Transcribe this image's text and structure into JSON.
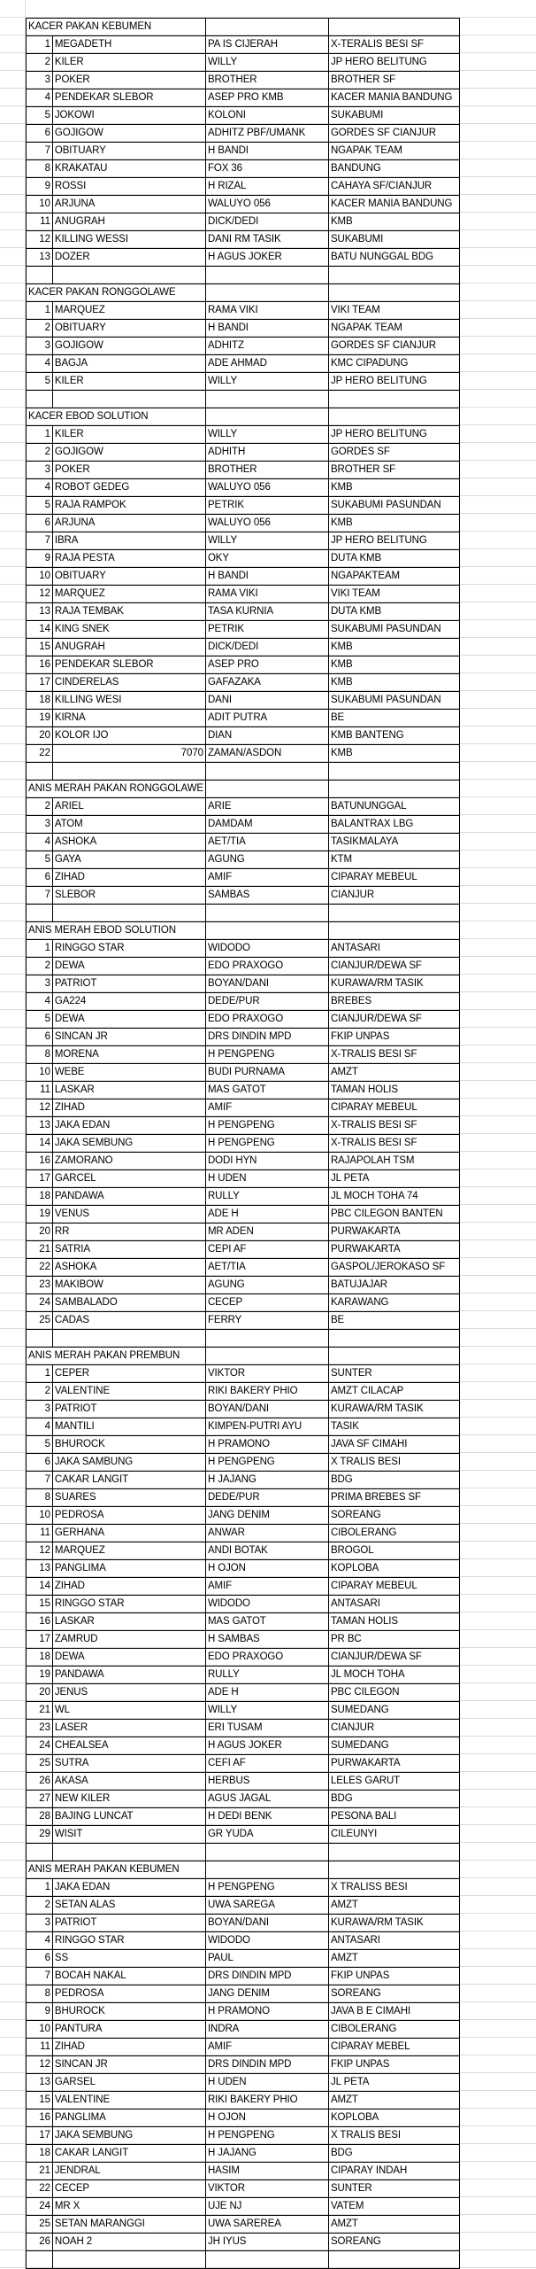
{
  "sections": [
    {
      "title": "KACER PAKAN KEBUMEN",
      "rows": [
        [
          "1",
          "MEGADETH",
          "PA IS CIJERAH",
          "X-TERALIS BESI SF"
        ],
        [
          "2",
          "KILER",
          "WILLY",
          "JP HERO BELITUNG"
        ],
        [
          "3",
          "POKER",
          "BROTHER",
          "BROTHER SF"
        ],
        [
          "4",
          "PENDEKAR SLEBOR",
          "ASEP PRO KMB",
          "KACER MANIA BANDUNG"
        ],
        [
          "5",
          "JOKOWI",
          "KOLONI",
          "SUKABUMI"
        ],
        [
          "6",
          "GOJIGOW",
          "ADHITZ PBF/UMANK",
          "GORDES SF CIANJUR"
        ],
        [
          "7",
          "OBITUARY",
          "H BANDI",
          "NGAPAK TEAM"
        ],
        [
          "8",
          "KRAKATAU",
          "FOX 36",
          "BANDUNG"
        ],
        [
          "9",
          "ROSSI",
          "H RIZAL",
          "CAHAYA SF/CIANJUR"
        ],
        [
          "10",
          "ARJUNA",
          "WALUYO 056",
          "KACER MANIA BANDUNG"
        ],
        [
          "11",
          "ANUGRAH",
          "DICK/DEDI",
          "KMB"
        ],
        [
          "12",
          "KILLING WESSI",
          "DANI RM TASIK",
          "SUKABUMI"
        ],
        [
          "13",
          "DOZER",
          "H AGUS JOKER",
          "BATU NUNGGAL BDG"
        ]
      ]
    },
    {
      "title": "KACER PAKAN RONGGOLAWE",
      "rows": [
        [
          "1",
          "MARQUEZ",
          "RAMA VIKI",
          "VIKI TEAM"
        ],
        [
          "2",
          "OBITUARY",
          "H BANDI",
          "NGAPAK TEAM"
        ],
        [
          "3",
          "GOJIGOW",
          "ADHITZ",
          "GORDES SF CIANJUR"
        ],
        [
          "4",
          "BAGJA",
          "ADE AHMAD",
          "KMC CIPADUNG"
        ],
        [
          "5",
          "KILER",
          "WILLY",
          "JP HERO BELITUNG"
        ]
      ]
    },
    {
      "title": "KACER EBOD SOLUTION",
      "rows": [
        [
          "1",
          "KILER",
          "WILLY",
          "JP HERO BELITUNG"
        ],
        [
          "2",
          "GOJIGOW",
          "ADHITH",
          "GORDES SF"
        ],
        [
          "3",
          "POKER",
          "BROTHER",
          "BROTHER SF"
        ],
        [
          "4",
          "ROBOT GEDEG",
          "WALUYO 056",
          "KMB"
        ],
        [
          "5",
          "RAJA RAMPOK",
          "PETRIK",
          "SUKABUMI PASUNDAN"
        ],
        [
          "6",
          "ARJUNA",
          "WALUYO 056",
          "KMB"
        ],
        [
          "7",
          "IBRA",
          "WILLY",
          "JP HERO BELITUNG"
        ],
        [
          "9",
          "RAJA PESTA",
          "OKY",
          "DUTA KMB"
        ],
        [
          "10",
          "OBITUARY",
          "H BANDI",
          "NGAPAKTEAM"
        ],
        [
          "12",
          "MARQUEZ",
          "RAMA VIKI",
          "VIKI TEAM"
        ],
        [
          "13",
          "RAJA TEMBAK",
          "TASA KURNIA",
          "DUTA KMB"
        ],
        [
          "14",
          "KING SNEK",
          "PETRIK",
          "SUKABUMI PASUNDAN"
        ],
        [
          "15",
          "ANUGRAH",
          "DICK/DEDI",
          "KMB"
        ],
        [
          "16",
          "PENDEKAR SLEBOR",
          "ASEP PRO",
          "KMB"
        ],
        [
          "17",
          "CINDERELAS",
          "GAFAZAKA",
          "KMB"
        ],
        [
          "18",
          "KILLING WESI",
          "DANI",
          "SUKABUMI PASUNDAN"
        ],
        [
          "19",
          "KIRNA",
          "ADIT PUTRA",
          "BE"
        ],
        [
          "20",
          "KOLOR IJO",
          "DIAN",
          "KMB BANTENG"
        ],
        [
          "22",
          "7070",
          "ZAMAN/ASDON",
          "KMB"
        ]
      ]
    },
    {
      "title": "ANIS MERAH PAKAN RONGGOLAWE",
      "rows": [
        [
          "2",
          "ARIEL",
          "ARIE",
          "BATUNUNGGAL"
        ],
        [
          "3",
          "ATOM",
          "DAMDAM",
          "BALANTRAX LBG"
        ],
        [
          "4",
          "ASHOKA",
          "AET/TIA",
          "TASIKMALAYA"
        ],
        [
          "5",
          "GAYA",
          "AGUNG",
          "KTM"
        ],
        [
          "6",
          "ZIHAD",
          "AMIF",
          "CIPARAY MEBEUL"
        ],
        [
          "7",
          "SLEBOR",
          "SAMBAS",
          "CIANJUR"
        ]
      ]
    },
    {
      "title": "ANIS MERAH EBOD SOLUTION",
      "rows": [
        [
          "1",
          "RINGGO STAR",
          "WIDODO",
          "ANTASARI"
        ],
        [
          "2",
          "DEWA",
          "EDO PRAXOGO",
          "CIANJUR/DEWA SF"
        ],
        [
          "3",
          "PATRIOT",
          "BOYAN/DANI",
          "KURAWA/RM TASIK"
        ],
        [
          "4",
          "GA224",
          "DEDE/PUR",
          "BREBES"
        ],
        [
          "5",
          "DEWA",
          "EDO PRAXOGO",
          "CIANJUR/DEWA SF"
        ],
        [
          "6",
          "SINCAN JR",
          "DRS DINDIN MPD",
          "FKIP UNPAS"
        ],
        [
          "8",
          "MORENA",
          "H PENGPENG",
          "X-TRALIS BESI SF"
        ],
        [
          "10",
          "WEBE",
          "BUDI PURNAMA",
          "AMZT"
        ],
        [
          "11",
          "LASKAR",
          "MAS GATOT",
          "TAMAN HOLIS"
        ],
        [
          "12",
          "ZIHAD",
          "AMIF",
          "CIPARAY MEBEUL"
        ],
        [
          "13",
          "JAKA EDAN",
          "H PENGPENG",
          "X-TRALIS BESI SF"
        ],
        [
          "14",
          "JAKA SEMBUNG",
          "H PENGPENG",
          "X-TRALIS BESI SF"
        ],
        [
          "16",
          "ZAMORANO",
          "DODI HYN",
          "RAJAPOLAH TSM"
        ],
        [
          "17",
          "GARCEL",
          "H UDEN",
          "JL PETA"
        ],
        [
          "18",
          "PANDAWA",
          "RULLY",
          "JL MOCH TOHA 74"
        ],
        [
          "19",
          "VENUS",
          "ADE H",
          "PBC CILEGON BANTEN"
        ],
        [
          "20",
          "RR",
          "MR ADEN",
          "PURWAKARTA"
        ],
        [
          "21",
          "SATRIA",
          "CEPI AF",
          "PURWAKARTA"
        ],
        [
          "22",
          "ASHOKA",
          "AET/TIA",
          "GASPOL/JEROKASO SF"
        ],
        [
          "23",
          "MAKIBOW",
          "AGUNG",
          "BATUJAJAR"
        ],
        [
          "24",
          "SAMBALADO",
          "CECEP",
          "KARAWANG"
        ],
        [
          "25",
          "CADAS",
          "FERRY",
          "BE"
        ]
      ]
    },
    {
      "title": "ANIS MERAH PAKAN PREMBUN",
      "rows": [
        [
          "1",
          "CEPER",
          "VIKTOR",
          "SUNTER"
        ],
        [
          "2",
          "VALENTINE",
          "RIKI BAKERY PHIO",
          "AMZT CILACAP"
        ],
        [
          "3",
          "PATRIOT",
          "BOYAN/DANI",
          "KURAWA/RM TASIK"
        ],
        [
          "4",
          "MANTILI",
          "KIMPEN-PUTRI AYU",
          "TASIK"
        ],
        [
          "5",
          "BHUROCK",
          "H PRAMONO",
          "JAVA SF CIMAHI"
        ],
        [
          "6",
          "JAKA SAMBUNG",
          "H PENGPENG",
          "X TRALIS BESI"
        ],
        [
          "7",
          "CAKAR LANGIT",
          "H JAJANG",
          "BDG"
        ],
        [
          "8",
          "SUARES",
          "DEDE/PUR",
          "PRIMA BREBES SF"
        ],
        [
          "10",
          "PEDROSA",
          "JANG DENIM",
          "SOREANG"
        ],
        [
          "11",
          "GERHANA",
          "ANWAR",
          "CIBOLERANG"
        ],
        [
          "12",
          "MARQUEZ",
          "ANDI BOTAK",
          "BROGOL"
        ],
        [
          "13",
          "PANGLIMA",
          "H OJON",
          "KOPLOBA"
        ],
        [
          "14",
          "ZIHAD",
          "AMIF",
          "CIPARAY MEBEUL"
        ],
        [
          "15",
          "RINGGO STAR",
          "WIDODO",
          "ANTASARI"
        ],
        [
          "16",
          "LASKAR",
          "MAS GATOT",
          "TAMAN HOLIS"
        ],
        [
          "17",
          "ZAMRUD",
          "H SAMBAS",
          "PR BC"
        ],
        [
          "18",
          "DEWA",
          "EDO PRAXOGO",
          "CIANJUR/DEWA SF"
        ],
        [
          "19",
          "PANDAWA",
          "RULLY",
          "JL MOCH TOHA"
        ],
        [
          "20",
          "JENUS",
          "ADE H",
          "PBC CILEGON"
        ],
        [
          "21",
          "WL",
          "WILLY",
          "SUMEDANG"
        ],
        [
          "23",
          "LASER",
          "ERI TUSAM",
          "CIANJUR"
        ],
        [
          "24",
          "CHEALSEA",
          "H AGUS JOKER",
          "SUMEDANG"
        ],
        [
          "25",
          "SUTRA",
          "CEFI AF",
          "PURWAKARTA"
        ],
        [
          "26",
          "AKASA",
          "HERBUS",
          "LELES GARUT"
        ],
        [
          "27",
          "NEW KILER",
          "AGUS JAGAL",
          "BDG"
        ],
        [
          "28",
          "BAJING LUNCAT",
          "H DEDI BENK",
          "PESONA BALI"
        ],
        [
          "29",
          "WISIT",
          "GR YUDA",
          "CILEUNYI"
        ]
      ]
    },
    {
      "title": "ANIS MERAH PAKAN KEBUMEN",
      "rows": [
        [
          "1",
          "JAKA EDAN",
          "H PENGPENG",
          "X TRALISS BESI"
        ],
        [
          "2",
          "SETAN ALAS",
          "UWA SAREGA",
          "AMZT"
        ],
        [
          "3",
          "PATRIOT",
          "BOYAN/DANI",
          "KURAWA/RM TASIK"
        ],
        [
          "4",
          "RINGGO STAR",
          "WIDODO",
          "ANTASARI"
        ],
        [
          "6",
          "SS",
          "PAUL",
          "AMZT"
        ],
        [
          "7",
          "BOCAH NAKAL",
          "DRS DINDIN MPD",
          "FKIP UNPAS"
        ],
        [
          "8",
          "PEDROSA",
          "JANG DENIM",
          "SOREANG"
        ],
        [
          "9",
          "BHUROCK",
          "H PRAMONO",
          "JAVA B E CIMAHI"
        ],
        [
          "10",
          "PANTURA",
          "INDRA",
          "CIBOLERANG"
        ],
        [
          "11",
          "ZIHAD",
          "AMIF",
          "CIPARAY MEBEL"
        ],
        [
          "12",
          "SINCAN JR",
          "DRS DINDIN MPD",
          "FKIP UNPAS"
        ],
        [
          "13",
          "GARSEL",
          "H UDEN",
          "JL PETA"
        ],
        [
          "15",
          "VALENTINE",
          "RIKI BAKERY PHIO",
          "AMZT"
        ],
        [
          "16",
          "PANGLIMA",
          "H OJON",
          "KOPLOBA"
        ],
        [
          "17",
          "JAKA SEMBUNG",
          "H PENGPENG",
          "X TRALIS BESI"
        ],
        [
          "18",
          "CAKAR LANGIT",
          "H JAJANG",
          "BDG"
        ],
        [
          "21",
          "JENDRAL",
          "HASIM",
          "CIPARAY INDAH"
        ],
        [
          "22",
          "CECEP",
          "VIKTOR",
          "SUNTER"
        ],
        [
          "24",
          "MR X",
          "UJE NJ",
          "VATEM"
        ],
        [
          "25",
          "SETAN MARANGGI",
          "UWA SAREREA",
          "AMZT"
        ],
        [
          "26",
          "NOAH 2",
          "JH IYUS",
          "SOREANG"
        ]
      ]
    }
  ]
}
